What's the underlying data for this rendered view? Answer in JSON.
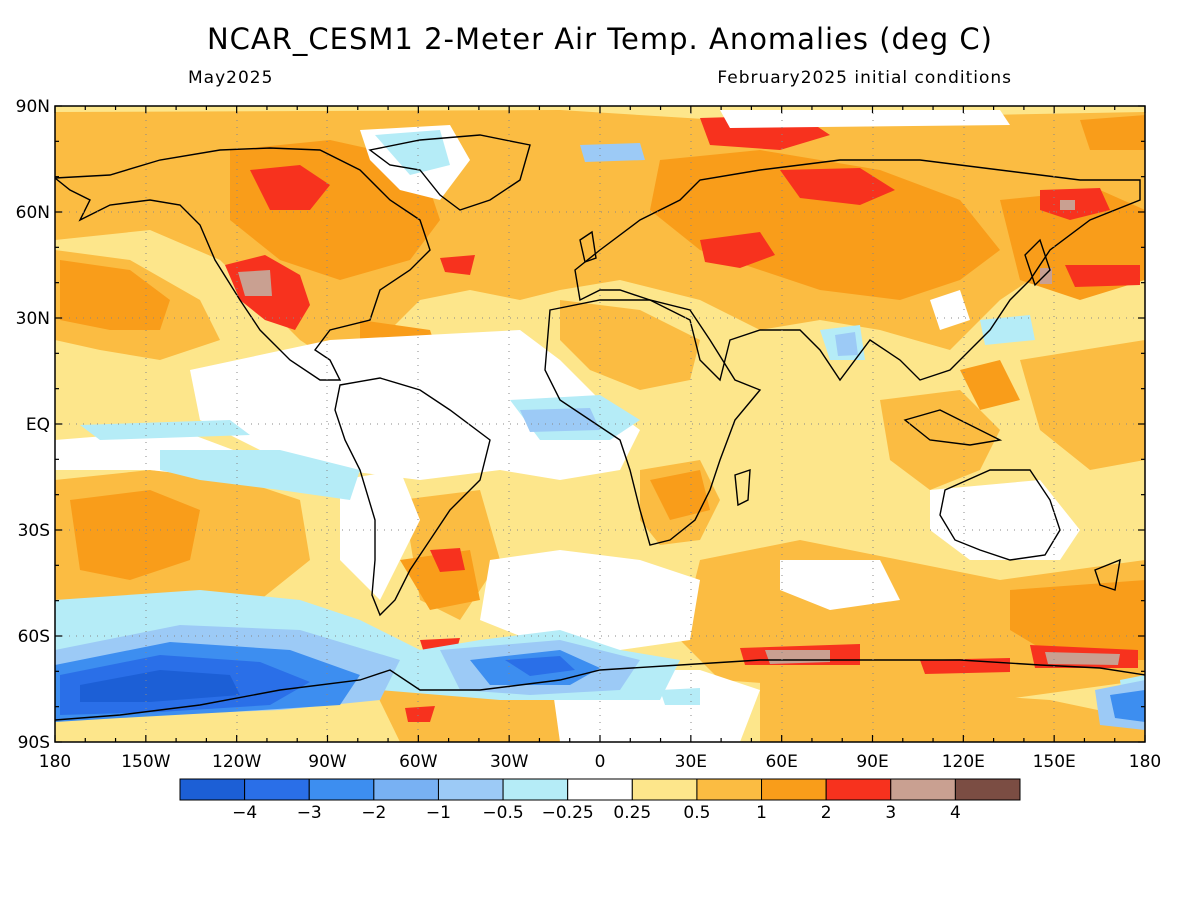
{
  "title": "NCAR_CESM1 2-Meter Air Temp. Anomalies (deg C)",
  "subtitle_left": "May2025",
  "subtitle_right": "February2025 initial conditions",
  "lat_labels": [
    "90N",
    "60N",
    "30N",
    "EQ",
    "30S",
    "60S",
    "90S"
  ],
  "lon_labels": [
    "180",
    "150W",
    "120W",
    "90W",
    "60W",
    "30W",
    "0",
    "30E",
    "60E",
    "90E",
    "120E",
    "150E",
    "180"
  ],
  "legend": {
    "colors": [
      "#1c5fd6",
      "#2a6fe8",
      "#3d8ef0",
      "#78b1f3",
      "#9ccaf6",
      "#b5ecf7",
      "#ffffff",
      "#fde68b",
      "#fbbc42",
      "#f99d1a",
      "#f7321e",
      "#c9a091",
      "#7b4d43"
    ],
    "labels": [
      "-4",
      "-3",
      "-2",
      "-1",
      "-0.5",
      "-0.25",
      "0.25",
      "0.5",
      "1",
      "2",
      "3",
      "4"
    ]
  }
}
